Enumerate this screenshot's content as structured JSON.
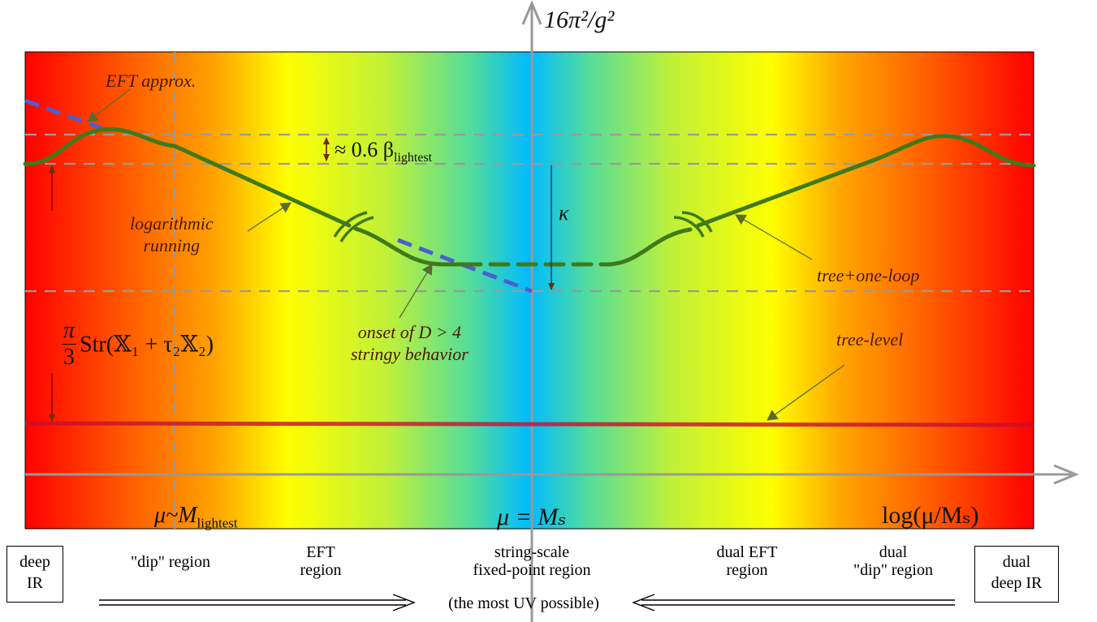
{
  "axes": {
    "y_label": "16π²/g²",
    "x_label": "log(μ/Mₛ)",
    "mu_lightest": "μ~M",
    "mu_lightest_sub": "lightest",
    "mu_ms": "μ = Mₛ"
  },
  "annotations": {
    "eft_approx": "EFT approx.",
    "beta_gap_prefix": "≈ 0.6 β",
    "beta_gap_sub": "lightest",
    "kappa": "κ",
    "log_running_1": "logarithmic",
    "log_running_2": "running",
    "onset_1": "onset of D > 4",
    "onset_2": "stringy behavior",
    "tree_one_loop": "tree+one-loop",
    "tree_level": "tree-level",
    "str_pi": "π",
    "str_three": "3",
    "str_expr": "Str(𝕏₁ + τ₂𝕏₂)"
  },
  "regions": {
    "deep_ir": [
      "deep",
      "IR"
    ],
    "dip": "\"dip\" region",
    "eft": [
      "EFT",
      "region"
    ],
    "string_scale": [
      "string-scale",
      "fixed-point region"
    ],
    "dual_eft": [
      "dual EFT",
      "region"
    ],
    "dual_dip": [
      "dual",
      "\"dip\" region"
    ],
    "dual_deep_ir": [
      "dual",
      "deep IR"
    ],
    "uv_note": "(the most UV possible)"
  },
  "colors": {
    "curve": "#3f7a1a",
    "eft_dash": "#4a5fcf",
    "tree_level": "#c8102e",
    "axis": "#999999",
    "arrow": "#6b2d00",
    "gradient": [
      "#ff0000",
      "#ffa500",
      "#ffff00",
      "#ccee33",
      "#55dd99",
      "#00bbff"
    ]
  },
  "icons": {
    "bridge_left": "break-mark-icon",
    "bridge_right": "break-mark-icon",
    "double_arrow_right": "double-arrow-right-icon",
    "double_arrow_left": "double-arrow-left-icon"
  }
}
